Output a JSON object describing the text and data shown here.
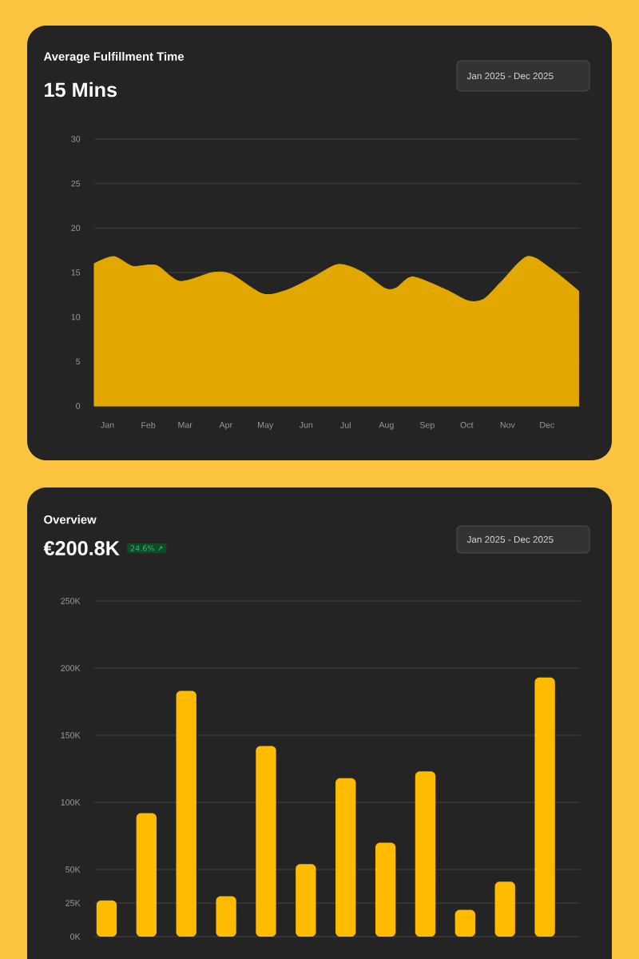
{
  "chart_data": [
    {
      "type": "area",
      "title": "Average Fulfillment Time",
      "subtitle": "15 Mins",
      "annotations": [
        "Jan 2025 - Dec 2025"
      ],
      "x": [
        "2024-12-22",
        "2025-01-06",
        "2025-01-20",
        "2025-02-07",
        "2025-02-25",
        "2025-03-22",
        "2025-04-05",
        "2025-04-29",
        "2025-05-17",
        "2025-06-07",
        "2025-06-25",
        "2025-07-13",
        "2025-07-31",
        "2025-08-09",
        "2025-08-21",
        "2025-09-16",
        "2025-10-02",
        "2025-10-14",
        "2025-10-27",
        "2025-11-16",
        "2025-12-04",
        "2025-12-25"
      ],
      "values": [
        16.0,
        16.8,
        15.7,
        15.8,
        14.0,
        15.0,
        14.8,
        12.6,
        13.0,
        14.5,
        15.9,
        15.1,
        13.2,
        13.3,
        14.5,
        13.0,
        11.8,
        12.0,
        13.9,
        16.8,
        15.4,
        12.9
      ],
      "color": "#e3a800",
      "xlim": [
        "2024-12-22",
        "2025-12-26"
      ],
      "xticks": [
        {
          "value": "2025-01-01",
          "label": "Jan"
        },
        {
          "value": "2025-02-01",
          "label": "Feb"
        },
        {
          "value": "2025-03-01",
          "label": "Mar"
        },
        {
          "value": "2025-04-01",
          "label": "Apr"
        },
        {
          "value": "2025-05-01",
          "label": "May"
        },
        {
          "value": "2025-06-01",
          "label": "Jun"
        },
        {
          "value": "2025-07-01",
          "label": "Jul"
        },
        {
          "value": "2025-08-01",
          "label": "Aug"
        },
        {
          "value": "2025-09-01",
          "label": "Sep"
        },
        {
          "value": "2025-10-01",
          "label": "Oct"
        },
        {
          "value": "2025-11-01",
          "label": "Nov"
        },
        {
          "value": "2025-12-01",
          "label": "Dec"
        }
      ],
      "ylim": [
        0,
        30
      ],
      "yticks": [
        0,
        5,
        10,
        15,
        20,
        25,
        30
      ],
      "grid": "y"
    },
    {
      "type": "bar",
      "title": "Overview",
      "subtitle": "€200.8K",
      "annotations": [
        "24.6% ↗",
        "Jan 2025 - Dec 2025"
      ],
      "categories": [
        null,
        null,
        null,
        null,
        null,
        null,
        null,
        null,
        null,
        null,
        null,
        null
      ],
      "values": [
        27,
        92,
        183,
        30,
        142,
        54,
        118,
        70,
        123,
        20,
        41,
        193
      ],
      "color": "#ffbb00",
      "ylim": [
        0,
        250
      ],
      "yticks": [
        {
          "value": 0,
          "label": "0K"
        },
        {
          "value": 25,
          "label": "25K"
        },
        {
          "value": 50,
          "label": "50K"
        },
        {
          "value": 100,
          "label": "100K"
        },
        {
          "value": 150,
          "label": "150K"
        },
        {
          "value": 200,
          "label": "200K"
        },
        {
          "value": 250,
          "label": "250K"
        }
      ],
      "grid": "y",
      "tick_labels": "y"
    }
  ]
}
